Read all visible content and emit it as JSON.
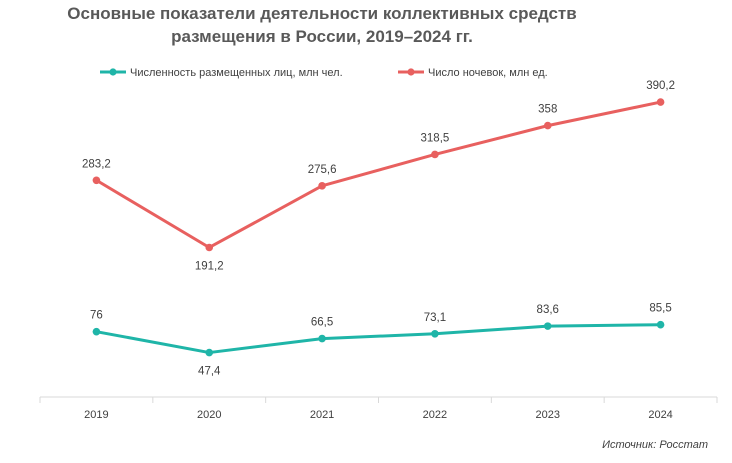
{
  "chart_data": {
    "type": "line",
    "title": [
      "Основные показатели деятельности коллективных средств",
      "размещения в России, 2019–2024 гг."
    ],
    "categories": [
      "2019",
      "2020",
      "2021",
      "2022",
      "2023",
      "2024"
    ],
    "series": [
      {
        "name": "Численность размещенных лиц, млн чел.",
        "color": "#1fb5a8",
        "values": [
          76,
          47.4,
          66.5,
          73.1,
          83.6,
          85.5
        ],
        "labels": [
          "76",
          "47,4",
          "66,5",
          "73,1",
          "83,6",
          "85,5"
        ]
      },
      {
        "name": "Число ночевок, млн ед.",
        "color": "#e8605f",
        "values": [
          283.2,
          191.2,
          275.6,
          318.5,
          358,
          390.2
        ],
        "labels": [
          "283,2",
          "191,2",
          "275,6",
          "318,5",
          "358",
          "390,2"
        ]
      }
    ],
    "legend_position": "top",
    "grid": false
  },
  "source": "Источник: Росстат"
}
